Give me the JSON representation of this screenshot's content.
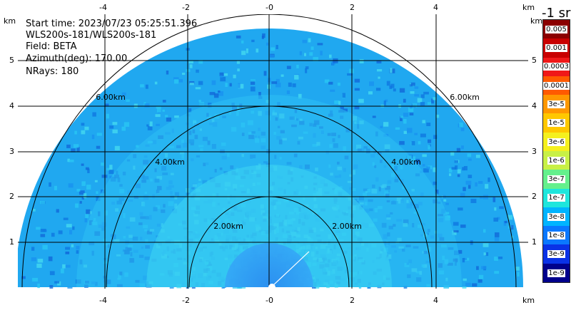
{
  "info": {
    "start_time": "Start time: 2023/07/23 05:25:51.396",
    "instrument": "WLS200s-181/WLS200s-181",
    "field": "Field: BETA",
    "azimuth": "Azimuth(deg): 170.00",
    "nrays": "NRays: 180"
  },
  "axes": {
    "unit": "km",
    "x_ticks": [
      "-4",
      "-2",
      "-0",
      "2",
      "4"
    ],
    "y_ticks": [
      "1",
      "2",
      "3",
      "4",
      "5"
    ],
    "range_rings": [
      "2.00km",
      "4.00km",
      "6.00km"
    ]
  },
  "colorbar": {
    "units_label": "-1 sr",
    "levels": [
      {
        "label": "0.005",
        "color": "#8b0000"
      },
      {
        "label": "0.001",
        "color": "#c80000"
      },
      {
        "label": "0.0003",
        "color": "#f01818"
      },
      {
        "label": "0.0001",
        "color": "#ff5a00"
      },
      {
        "label": "3e-5",
        "color": "#ff9800"
      },
      {
        "label": "1e-5",
        "color": "#ffc800"
      },
      {
        "label": "3e-6",
        "color": "#f5f01e"
      },
      {
        "label": "1e-6",
        "color": "#c8f046"
      },
      {
        "label": "3e-7",
        "color": "#64f08c"
      },
      {
        "label": "1e-7",
        "color": "#1ee6dc"
      },
      {
        "label": "3e-8",
        "color": "#00b4ff"
      },
      {
        "label": "1e-8",
        "color": "#0a78ff"
      },
      {
        "label": "3e-9",
        "color": "#0a32e6"
      },
      {
        "label": "1e-9",
        "color": "#00008c"
      }
    ]
  }
}
